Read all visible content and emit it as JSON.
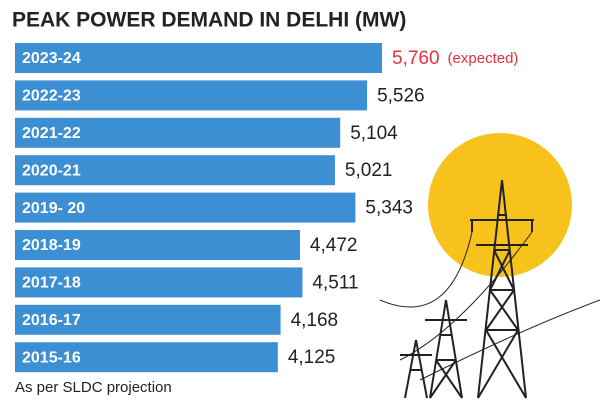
{
  "chart_data": {
    "type": "bar",
    "orientation": "horizontal",
    "title": "PEAK POWER DEMAND IN DELHI (MW)",
    "categories": [
      "2023-24",
      "2022-23",
      "2021-22",
      "2020-21",
      "2019- 20",
      "2018-19",
      "2017-18",
      "2016-17",
      "2015-16"
    ],
    "values": [
      5760,
      5526,
      5104,
      5021,
      5343,
      4472,
      4511,
      4168,
      4125
    ],
    "value_labels": [
      "5,760",
      "5,526",
      "5,104",
      "5,021",
      "5,343",
      "4,472",
      "4,511",
      "4,168",
      "4,125"
    ],
    "color": "#3b8fd2",
    "annotations": [
      {
        "category": "2023-24",
        "text": "(expected)",
        "color": "#e3323b"
      }
    ],
    "footnote": "As per SLDC projection"
  }
}
